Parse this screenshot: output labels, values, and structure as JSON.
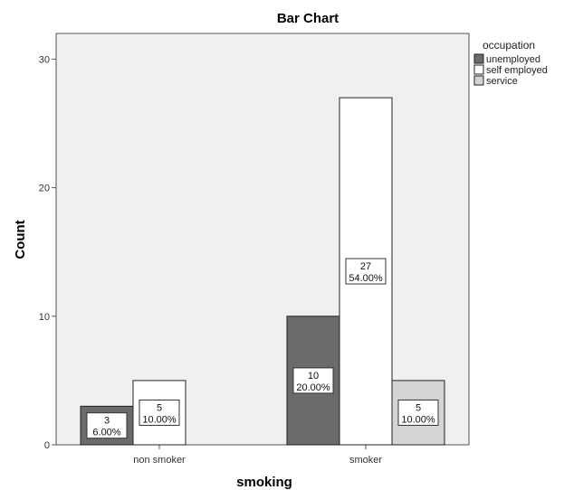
{
  "chart_data": {
    "type": "bar",
    "title": "Bar Chart",
    "xlabel": "smoking",
    "ylabel": "Count",
    "categories": [
      "non smoker",
      "smoker"
    ],
    "ylim": [
      0,
      32
    ],
    "yticks": [
      0,
      10,
      20,
      30
    ],
    "legend": {
      "title": "occupation",
      "placement": "top-right outside plot"
    },
    "series": [
      {
        "name": "unemployed",
        "color": "#6b6b6b",
        "values": [
          3,
          10
        ],
        "labels": [
          {
            "count": "3",
            "pct": "6.00%"
          },
          {
            "count": "10",
            "pct": "20.00%"
          }
        ]
      },
      {
        "name": "self employed",
        "color": "#ffffff",
        "values": [
          5,
          27
        ],
        "labels": [
          {
            "count": "5",
            "pct": "10.00%"
          },
          {
            "count": "27",
            "pct": "54.00%"
          }
        ]
      },
      {
        "name": "service",
        "color": "#d4d4d4",
        "values": [
          null,
          5
        ],
        "labels": [
          null,
          {
            "count": "5",
            "pct": "10.00%"
          }
        ]
      }
    ]
  }
}
